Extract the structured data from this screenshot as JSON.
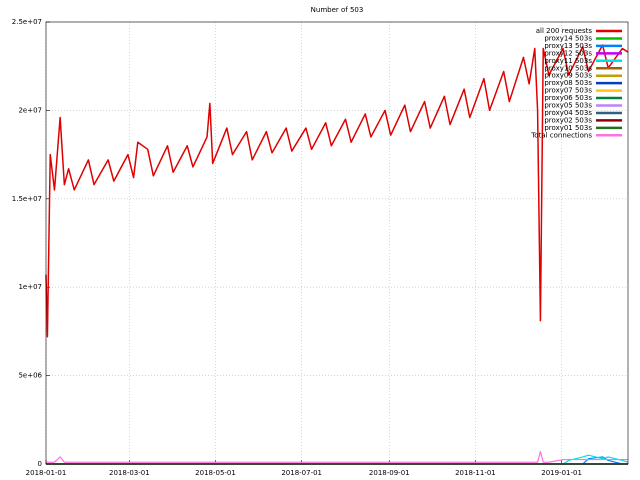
{
  "chart_data": {
    "type": "line",
    "title": "Number of 503",
    "x": [
      "2018-01-01",
      "2018-01-02",
      "2018-01-04",
      "2018-01-07",
      "2018-01-11",
      "2018-01-14",
      "2018-01-17",
      "2018-01-21",
      "2018-01-31",
      "2018-02-04",
      "2018-02-14",
      "2018-02-18",
      "2018-02-28",
      "2018-03-04",
      "2018-03-07",
      "2018-03-14",
      "2018-03-18",
      "2018-03-28",
      "2018-04-01",
      "2018-04-11",
      "2018-04-15",
      "2018-04-25",
      "2018-04-27",
      "2018-04-29",
      "2018-05-09",
      "2018-05-13",
      "2018-05-23",
      "2018-05-27",
      "2018-06-06",
      "2018-06-10",
      "2018-06-20",
      "2018-06-24",
      "2018-07-04",
      "2018-07-08",
      "2018-07-18",
      "2018-07-22",
      "2018-08-01",
      "2018-08-05",
      "2018-08-15",
      "2018-08-19",
      "2018-08-29",
      "2018-09-02",
      "2018-09-12",
      "2018-09-16",
      "2018-09-26",
      "2018-09-30",
      "2018-10-10",
      "2018-10-14",
      "2018-10-24",
      "2018-10-28",
      "2018-11-07",
      "2018-11-11",
      "2018-11-21",
      "2018-11-25",
      "2018-12-05",
      "2018-12-09",
      "2018-12-13",
      "2018-12-15",
      "2018-12-17",
      "2018-12-19",
      "2018-12-23",
      "2019-01-02",
      "2019-01-06",
      "2019-01-16",
      "2019-01-20",
      "2019-01-30",
      "2019-02-03",
      "2019-02-13",
      "2019-02-17"
    ],
    "xlim": [
      "2018-01-01",
      "2019-02-17"
    ],
    "xticks": [
      "2018-01-01",
      "2018-03-01",
      "2018-05-01",
      "2018-07-01",
      "2018-09-01",
      "2018-11-01",
      "2019-01-01"
    ],
    "ylim": [
      0,
      25000000
    ],
    "yticks": [
      0,
      {
        "value": 5000000,
        "label": "5e+06"
      },
      {
        "value": 10000000,
        "label": "1e+07"
      },
      {
        "value": 15000000,
        "label": "1.5e+07"
      },
      {
        "value": 20000000,
        "label": "2e+07"
      },
      {
        "value": 25000000,
        "label": "2.5e+07"
      }
    ],
    "grid": true,
    "legend": "top-right",
    "series": [
      {
        "name": "all 200 requests",
        "color": "#e00000",
        "values": [
          10700000,
          7200000,
          17500000,
          15500000,
          19600000,
          15800000,
          16700000,
          15500000,
          17200000,
          15800000,
          17200000,
          16000000,
          17500000,
          16200000,
          18200000,
          17800000,
          16300000,
          18000000,
          16500000,
          18000000,
          16800000,
          18500000,
          20400000,
          17000000,
          19000000,
          17500000,
          18800000,
          17200000,
          18800000,
          17600000,
          19000000,
          17700000,
          19000000,
          17800000,
          19300000,
          18000000,
          19500000,
          18200000,
          19800000,
          18500000,
          20000000,
          18600000,
          20300000,
          18800000,
          20500000,
          19000000,
          20800000,
          19200000,
          21200000,
          19600000,
          21800000,
          20000000,
          22200000,
          20500000,
          23000000,
          21500000,
          23500000,
          20000000,
          8100000,
          23500000,
          22000000,
          23500000,
          22000000,
          23600000,
          22200000,
          23700000,
          22400000,
          23500000,
          23300000
        ]
      },
      {
        "name": "proxy14 503s",
        "color": "#00c000",
        "values": [
          0,
          0,
          0,
          0,
          0,
          0,
          0,
          0,
          0,
          0,
          0,
          0,
          0,
          0,
          0,
          0,
          0,
          0,
          0,
          0,
          0,
          0,
          0,
          0,
          0,
          0,
          0,
          0,
          0,
          0,
          0,
          0,
          0,
          0,
          0,
          0,
          0,
          0,
          0,
          0,
          0,
          0,
          0,
          0,
          0,
          0,
          0,
          0,
          0,
          0,
          0,
          0,
          0,
          0,
          0,
          0,
          0,
          0,
          0,
          0,
          0,
          0,
          0,
          0,
          0,
          0,
          0,
          0,
          0
        ]
      },
      {
        "name": "proxy13 503s",
        "color": "#0080ff",
        "values": [
          0,
          0,
          0,
          0,
          0,
          0,
          0,
          0,
          0,
          0,
          0,
          0,
          0,
          0,
          0,
          0,
          0,
          0,
          0,
          0,
          0,
          0,
          0,
          0,
          0,
          0,
          0,
          0,
          0,
          0,
          0,
          0,
          0,
          0,
          0,
          0,
          0,
          0,
          0,
          0,
          0,
          0,
          0,
          0,
          0,
          0,
          0,
          0,
          0,
          0,
          0,
          0,
          0,
          0,
          0,
          0,
          0,
          0,
          0,
          0,
          0,
          0,
          0,
          0,
          300000,
          400000,
          200000,
          0,
          0
        ]
      },
      {
        "name": "proxy12 503s",
        "color": "#c000ff",
        "values": [
          0,
          0,
          0,
          0,
          0,
          0,
          0,
          0,
          0,
          0,
          0,
          0,
          0,
          0,
          0,
          0,
          0,
          0,
          0,
          0,
          0,
          0,
          0,
          0,
          0,
          0,
          0,
          0,
          0,
          0,
          0,
          0,
          0,
          0,
          0,
          0,
          0,
          0,
          0,
          0,
          0,
          0,
          0,
          0,
          0,
          0,
          0,
          0,
          0,
          0,
          0,
          0,
          0,
          0,
          0,
          0,
          0,
          0,
          0,
          0,
          0,
          0,
          0,
          0,
          0,
          0,
          0,
          0,
          0
        ]
      },
      {
        "name": "proxy11 503s",
        "color": "#00e0e0",
        "values": [
          0,
          0,
          0,
          0,
          0,
          0,
          0,
          0,
          0,
          0,
          0,
          0,
          0,
          0,
          0,
          0,
          0,
          0,
          0,
          0,
          0,
          0,
          0,
          0,
          0,
          0,
          0,
          0,
          0,
          0,
          0,
          0,
          0,
          0,
          0,
          0,
          0,
          0,
          0,
          0,
          0,
          0,
          0,
          0,
          0,
          0,
          0,
          0,
          0,
          0,
          0,
          0,
          0,
          0,
          0,
          0,
          0,
          0,
          0,
          0,
          0,
          0,
          200000,
          400000,
          500000,
          300000,
          400000,
          200000,
          100000
        ]
      },
      {
        "name": "proxy10 503s",
        "color": "#a06000",
        "values": [
          0,
          0,
          0,
          0,
          0,
          0,
          0,
          0,
          0,
          0,
          0,
          0,
          0,
          0,
          0,
          0,
          0,
          0,
          0,
          0,
          0,
          0,
          0,
          0,
          0,
          0,
          0,
          0,
          0,
          0,
          0,
          0,
          0,
          0,
          0,
          0,
          0,
          0,
          0,
          0,
          0,
          0,
          0,
          0,
          0,
          0,
          0,
          0,
          0,
          0,
          0,
          0,
          0,
          0,
          0,
          0,
          0,
          0,
          0,
          0,
          0,
          0,
          0,
          0,
          0,
          0,
          0,
          0,
          0
        ]
      },
      {
        "name": "proxy09 503s",
        "color": "#c0a000",
        "values": [
          0,
          0,
          0,
          0,
          0,
          0,
          0,
          0,
          0,
          0,
          0,
          0,
          0,
          0,
          0,
          0,
          0,
          0,
          0,
          0,
          0,
          0,
          0,
          0,
          0,
          0,
          0,
          0,
          0,
          0,
          0,
          0,
          0,
          0,
          0,
          0,
          0,
          0,
          0,
          0,
          0,
          0,
          0,
          0,
          0,
          0,
          0,
          0,
          0,
          0,
          0,
          0,
          0,
          0,
          0,
          0,
          0,
          0,
          0,
          0,
          0,
          0,
          0,
          0,
          0,
          0,
          0,
          0,
          0
        ]
      },
      {
        "name": "proxy08 503s",
        "color": "#0040c0",
        "values": [
          0,
          0,
          0,
          0,
          0,
          0,
          0,
          0,
          0,
          0,
          0,
          0,
          0,
          0,
          0,
          0,
          0,
          0,
          0,
          0,
          0,
          0,
          0,
          0,
          0,
          0,
          0,
          0,
          0,
          0,
          0,
          0,
          0,
          0,
          0,
          0,
          0,
          0,
          0,
          0,
          0,
          0,
          0,
          0,
          0,
          0,
          0,
          0,
          0,
          0,
          0,
          0,
          0,
          0,
          0,
          0,
          0,
          0,
          0,
          0,
          0,
          0,
          0,
          0,
          0,
          0,
          0,
          0,
          0
        ]
      },
      {
        "name": "proxy07 503s",
        "color": "#ffc020",
        "values": [
          0,
          0,
          0,
          0,
          0,
          0,
          0,
          0,
          0,
          0,
          0,
          0,
          0,
          0,
          0,
          0,
          0,
          0,
          0,
          0,
          0,
          0,
          0,
          0,
          0,
          0,
          0,
          0,
          0,
          0,
          0,
          0,
          0,
          0,
          0,
          0,
          0,
          0,
          0,
          0,
          0,
          0,
          0,
          0,
          0,
          0,
          0,
          0,
          0,
          0,
          0,
          0,
          0,
          0,
          0,
          0,
          0,
          0,
          0,
          0,
          0,
          0,
          0,
          0,
          0,
          0,
          0,
          0,
          0
        ]
      },
      {
        "name": "proxy06 503s",
        "color": "#008040",
        "values": [
          0,
          0,
          0,
          0,
          0,
          0,
          0,
          0,
          0,
          0,
          0,
          0,
          0,
          0,
          0,
          0,
          0,
          0,
          0,
          0,
          0,
          0,
          0,
          0,
          0,
          0,
          0,
          0,
          0,
          0,
          0,
          0,
          0,
          0,
          0,
          0,
          0,
          0,
          0,
          0,
          0,
          0,
          0,
          0,
          0,
          0,
          0,
          0,
          0,
          0,
          0,
          0,
          0,
          0,
          0,
          0,
          0,
          0,
          0,
          0,
          0,
          0,
          0,
          0,
          0,
          0,
          0,
          0,
          0
        ]
      },
      {
        "name": "proxy05 503s",
        "color": "#c080ff",
        "values": [
          0,
          0,
          0,
          0,
          0,
          0,
          0,
          0,
          0,
          0,
          0,
          0,
          0,
          0,
          0,
          0,
          0,
          0,
          0,
          0,
          0,
          0,
          0,
          0,
          0,
          0,
          0,
          0,
          0,
          0,
          0,
          0,
          0,
          0,
          0,
          0,
          0,
          0,
          0,
          0,
          0,
          0,
          0,
          0,
          0,
          0,
          0,
          0,
          0,
          0,
          0,
          0,
          0,
          0,
          0,
          0,
          0,
          0,
          0,
          0,
          0,
          0,
          0,
          0,
          0,
          0,
          0,
          0,
          0
        ]
      },
      {
        "name": "proxy04 503s",
        "color": "#306080",
        "values": [
          0,
          0,
          0,
          0,
          0,
          0,
          0,
          0,
          0,
          0,
          0,
          0,
          0,
          0,
          0,
          0,
          0,
          0,
          0,
          0,
          0,
          0,
          0,
          0,
          0,
          0,
          0,
          0,
          0,
          0,
          0,
          0,
          0,
          0,
          0,
          0,
          0,
          0,
          0,
          0,
          0,
          0,
          0,
          0,
          0,
          0,
          0,
          0,
          0,
          0,
          0,
          0,
          0,
          0,
          0,
          0,
          0,
          0,
          0,
          0,
          0,
          0,
          0,
          0,
          0,
          0,
          0,
          0,
          0
        ]
      },
      {
        "name": "proxy02 503s",
        "color": "#900000",
        "values": [
          0,
          0,
          0,
          0,
          0,
          0,
          0,
          0,
          0,
          0,
          0,
          0,
          0,
          0,
          0,
          0,
          0,
          0,
          0,
          0,
          0,
          0,
          0,
          0,
          0,
          0,
          0,
          0,
          0,
          0,
          0,
          0,
          0,
          0,
          0,
          0,
          0,
          0,
          0,
          0,
          0,
          0,
          0,
          0,
          0,
          0,
          0,
          0,
          0,
          0,
          0,
          0,
          0,
          0,
          0,
          0,
          0,
          0,
          0,
          0,
          0,
          0,
          0,
          0,
          0,
          0,
          0,
          0,
          0
        ]
      },
      {
        "name": "proxy01 503s",
        "color": "#207020",
        "values": [
          0,
          0,
          0,
          0,
          0,
          0,
          0,
          0,
          0,
          0,
          0,
          0,
          0,
          0,
          0,
          0,
          0,
          0,
          0,
          0,
          0,
          0,
          0,
          0,
          0,
          0,
          0,
          0,
          0,
          0,
          0,
          0,
          0,
          0,
          0,
          0,
          0,
          0,
          0,
          0,
          0,
          0,
          0,
          0,
          0,
          0,
          0,
          0,
          0,
          0,
          0,
          0,
          0,
          0,
          0,
          0,
          0,
          0,
          0,
          0,
          0,
          0,
          0,
          0,
          0,
          0,
          0,
          0,
          0
        ]
      },
      {
        "name": "Total connections",
        "color": "#ff70e0",
        "values": [
          100000,
          100000,
          100000,
          100000,
          400000,
          100000,
          100000,
          100000,
          100000,
          100000,
          100000,
          100000,
          100000,
          100000,
          100000,
          100000,
          100000,
          100000,
          100000,
          100000,
          100000,
          100000,
          100000,
          100000,
          100000,
          100000,
          100000,
          100000,
          100000,
          100000,
          100000,
          100000,
          100000,
          100000,
          100000,
          100000,
          100000,
          100000,
          100000,
          100000,
          100000,
          100000,
          100000,
          100000,
          100000,
          100000,
          100000,
          100000,
          100000,
          100000,
          100000,
          100000,
          100000,
          100000,
          100000,
          100000,
          100000,
          100000,
          700000,
          100000,
          100000,
          250000,
          250000,
          250000,
          250000,
          250000,
          250000,
          250000,
          250000
        ]
      }
    ]
  }
}
